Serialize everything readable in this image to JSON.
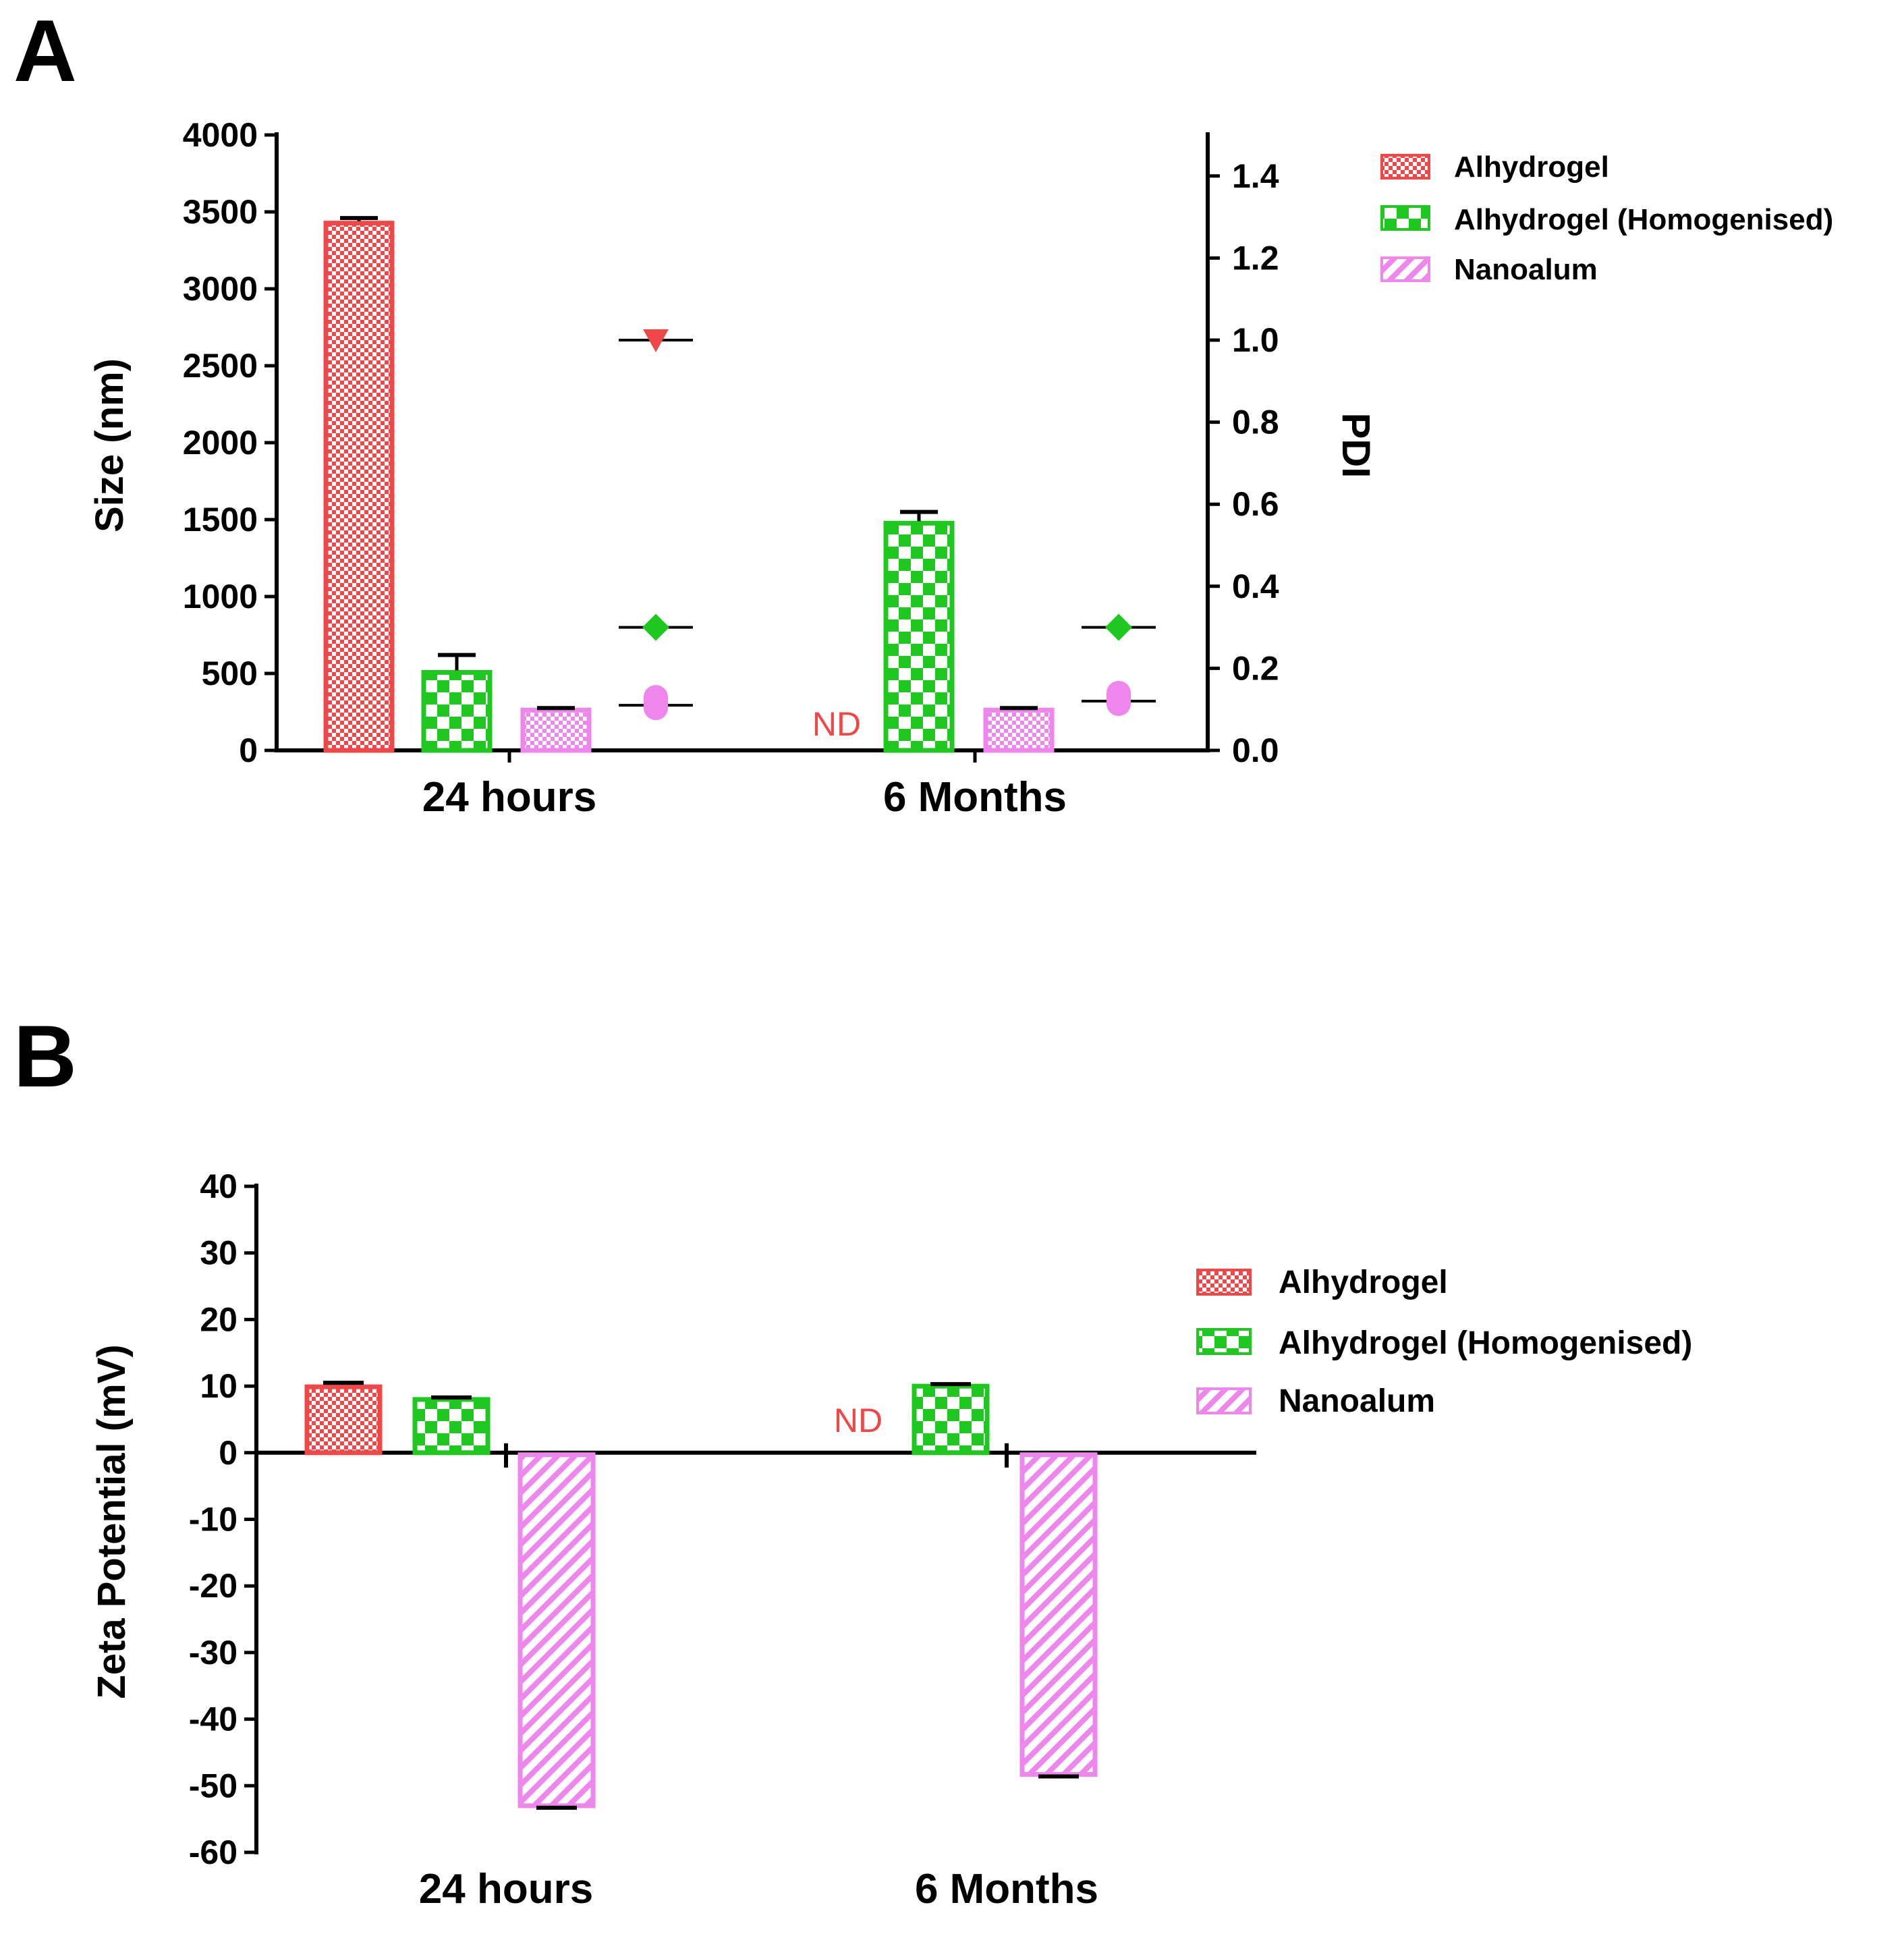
{
  "colors": {
    "alhydrogel": "#f04848",
    "homogenised": "#1ec81e",
    "nanoalum": "#ee86ee",
    "nd": "#f04848",
    "axis": "#000000"
  },
  "legend": [
    {
      "label": "Alhydrogel",
      "color": "#f04848",
      "pattern": "fine-check"
    },
    {
      "label": "Alhydrogel (Homogenised)",
      "color": "#1ec81e",
      "pattern": "coarse-check"
    },
    {
      "label": "Nanoalum",
      "color": "#ee86ee",
      "pattern": "hatch"
    }
  ],
  "chart_data": [
    {
      "panel": "A",
      "type": "bar",
      "categories": [
        "24 hours",
        "6 Months"
      ],
      "ylabel": "Size (nm)",
      "y2label": "PDI",
      "ylim": [
        0,
        4000
      ],
      "yticks": [
        "0",
        "500",
        "1000",
        "1500",
        "2000",
        "2500",
        "3000",
        "3500",
        "4000"
      ],
      "y2lim": [
        0,
        1.5
      ],
      "y2ticks": [
        "0.0",
        "0.2",
        "0.4",
        "0.6",
        "0.8",
        "1.0",
        "1.2",
        "1.4"
      ],
      "series": [
        {
          "name": "Alhydrogel",
          "values": [
            3440,
            null
          ],
          "errors": [
            20,
            null
          ]
        },
        {
          "name": "Alhydrogel (Homogenised)",
          "values": [
            520,
            1490
          ],
          "errors": [
            100,
            60
          ]
        },
        {
          "name": "Nanoalum",
          "values": [
            275,
            275
          ],
          "errors": [
            0,
            0
          ]
        }
      ],
      "pdi_series": [
        {
          "name": "Alhydrogel",
          "marker": "triangle-down",
          "values": [
            1.0,
            null
          ]
        },
        {
          "name": "Alhydrogel (Homogenised)",
          "marker": "diamond",
          "values": [
            0.3,
            0.3
          ]
        },
        {
          "name": "Nanoalum",
          "marker": "circle",
          "values": [
            0.11,
            0.12
          ]
        }
      ],
      "annotations": [
        {
          "category": "6 Months",
          "series": "Alhydrogel",
          "text": "ND"
        }
      ]
    },
    {
      "panel": "B",
      "type": "bar",
      "categories": [
        "24 hours",
        "6 Months"
      ],
      "ylabel": "Zeta Potential (mV)",
      "ylim": [
        -60,
        40
      ],
      "yticks": [
        "-60",
        "-50",
        "-40",
        "-30",
        "-20",
        "-10",
        "0",
        "10",
        "20",
        "30",
        "40"
      ],
      "series": [
        {
          "name": "Alhydrogel",
          "values": [
            10.2,
            null
          ],
          "errors": [
            0.3,
            null
          ]
        },
        {
          "name": "Alhydrogel (Homogenised)",
          "values": [
            8.3,
            10.3
          ],
          "errors": [
            0,
            0
          ]
        },
        {
          "name": "Nanoalum",
          "values": [
            -53.0,
            -48.3
          ],
          "errors": [
            0.3,
            0.3
          ]
        }
      ],
      "annotations": [
        {
          "category": "6 Months",
          "series": "Alhydrogel",
          "text": "ND"
        }
      ]
    }
  ]
}
